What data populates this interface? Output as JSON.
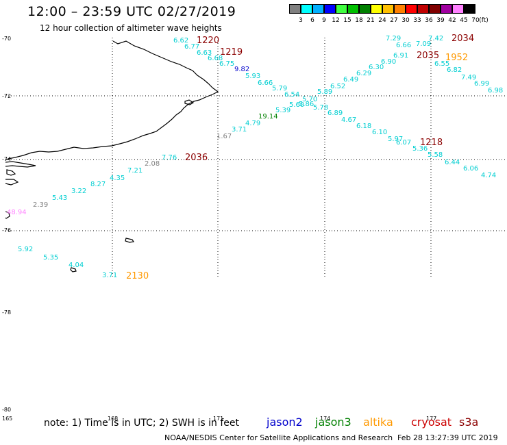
{
  "header": {
    "title": "12:00 – 23:59 UTC 02/27/2019",
    "subtitle": "12 hour collection of altimeter wave heights"
  },
  "scale": {
    "unit_label": "(ft)",
    "ticks": [
      "3",
      "6",
      "9",
      "12",
      "15",
      "18",
      "21",
      "24",
      "27",
      "30",
      "33",
      "36",
      "39",
      "42",
      "45",
      "70"
    ],
    "colors": [
      "#808080",
      "#00ffff",
      "#00b0ff",
      "#0000ff",
      "#40ff40",
      "#00c000",
      "#008000",
      "#ffff00",
      "#ffc000",
      "#ff8000",
      "#ff0000",
      "#c00000",
      "#800000",
      "#a000a0",
      "#ff80ff",
      "#000000"
    ]
  },
  "axes": {
    "latitudes": [
      "-70",
      "-72",
      "-74",
      "-76",
      "-78",
      "-80"
    ],
    "longitudes": [
      "165",
      "168",
      "171",
      "174",
      "177"
    ]
  },
  "observations": [
    {
      "v": "6.62",
      "c": "#00ced1"
    },
    {
      "v": "6.77",
      "c": "#00ced1"
    },
    {
      "v": "6.63",
      "c": "#00ced1"
    },
    {
      "v": "6.68",
      "c": "#00ced1"
    },
    {
      "v": "6.75",
      "c": "#00ced1"
    },
    {
      "v": "9.82",
      "c": "#0000cc"
    },
    {
      "v": "5.93",
      "c": "#00ced1"
    },
    {
      "v": "6.66",
      "c": "#00ced1"
    },
    {
      "v": "5.79",
      "c": "#00ced1"
    },
    {
      "v": "6.54",
      "c": "#00ced1"
    },
    {
      "v": "5.70",
      "c": "#00ced1"
    },
    {
      "v": "5.86",
      "c": "#00ced1"
    },
    {
      "v": "5.60",
      "c": "#00ced1"
    },
    {
      "v": "5.39",
      "c": "#00ced1"
    },
    {
      "v": "19.14",
      "c": "#008000"
    },
    {
      "v": "4.79",
      "c": "#00ced1"
    },
    {
      "v": "3.71",
      "c": "#00ced1"
    },
    {
      "v": "1.67",
      "c": "#808080"
    },
    {
      "v": "5.89",
      "c": "#00ced1"
    },
    {
      "v": "6.52",
      "c": "#00ced1"
    },
    {
      "v": "6.49",
      "c": "#00ced1"
    },
    {
      "v": "6.29",
      "c": "#00ced1"
    },
    {
      "v": "6.30",
      "c": "#00ced1"
    },
    {
      "v": "6.90",
      "c": "#00ced1"
    },
    {
      "v": "6.91",
      "c": "#00ced1"
    },
    {
      "v": "7.29",
      "c": "#00ced1"
    },
    {
      "v": "6.66",
      "c": "#00ced1"
    },
    {
      "v": "7.09",
      "c": "#00ced1"
    },
    {
      "v": "7.42",
      "c": "#00ced1"
    },
    {
      "v": "5.78",
      "c": "#00ced1"
    },
    {
      "v": "6.89",
      "c": "#00ced1"
    },
    {
      "v": "4.67",
      "c": "#00ced1"
    },
    {
      "v": "6.18",
      "c": "#00ced1"
    },
    {
      "v": "6.10",
      "c": "#00ced1"
    },
    {
      "v": "5.97",
      "c": "#00ced1"
    },
    {
      "v": "6.07",
      "c": "#00ced1"
    },
    {
      "v": "5.36",
      "c": "#00ced1"
    },
    {
      "v": "5.58",
      "c": "#00ced1"
    },
    {
      "v": "6.44",
      "c": "#00ced1"
    },
    {
      "v": "6.06",
      "c": "#00ced1"
    },
    {
      "v": "4.74",
      "c": "#00ced1"
    },
    {
      "v": "6.55",
      "c": "#00ced1"
    },
    {
      "v": "6.82",
      "c": "#00ced1"
    },
    {
      "v": "7.49",
      "c": "#00ced1"
    },
    {
      "v": "6.99",
      "c": "#00ced1"
    },
    {
      "v": "6.98",
      "c": "#00ced1"
    },
    {
      "v": "7.76",
      "c": "#00ced1"
    },
    {
      "v": "2.08",
      "c": "#808080"
    },
    {
      "v": "7.21",
      "c": "#00ced1"
    },
    {
      "v": "4.35",
      "c": "#00ced1"
    },
    {
      "v": "8.27",
      "c": "#00ced1"
    },
    {
      "v": "3.22",
      "c": "#00ced1"
    },
    {
      "v": "5.43",
      "c": "#00ced1"
    },
    {
      "v": "2.39",
      "c": "#808080"
    },
    {
      "v": "48.94",
      "c": "#ff80ff"
    },
    {
      "v": "5.92",
      "c": "#00ced1"
    },
    {
      "v": "5.35",
      "c": "#00ced1"
    },
    {
      "v": "4.04",
      "c": "#00ced1"
    },
    {
      "v": "3.71",
      "c": "#00ced1"
    }
  ],
  "pass_times": [
    {
      "t": "1220",
      "c": "#8b0000"
    },
    {
      "t": "1219",
      "c": "#8b0000"
    },
    {
      "t": "2034",
      "c": "#8b0000"
    },
    {
      "t": "2035",
      "c": "#8b0000"
    },
    {
      "t": "1952",
      "c": "#ff9900"
    },
    {
      "t": "1218",
      "c": "#8b0000"
    },
    {
      "t": "2036",
      "c": "#8b0000"
    },
    {
      "t": "2130",
      "c": "#ff9900"
    }
  ],
  "footer": {
    "note": "note: 1) Time is in UTC; 2) SWH is in feet",
    "satellites": [
      {
        "name": "jason2",
        "c": "#0000cc"
      },
      {
        "name": "jason3",
        "c": "#008000"
      },
      {
        "name": "altika",
        "c": "#ff9900"
      },
      {
        "name": "cryosat",
        "c": "#cc0000"
      },
      {
        "name": "s3a",
        "c": "#8b0000"
      }
    ],
    "credit": "NOAA/NESDIS Center for Satellite Applications and Research",
    "timestamp": "Feb 28 13:27:39 UTC 2019"
  }
}
